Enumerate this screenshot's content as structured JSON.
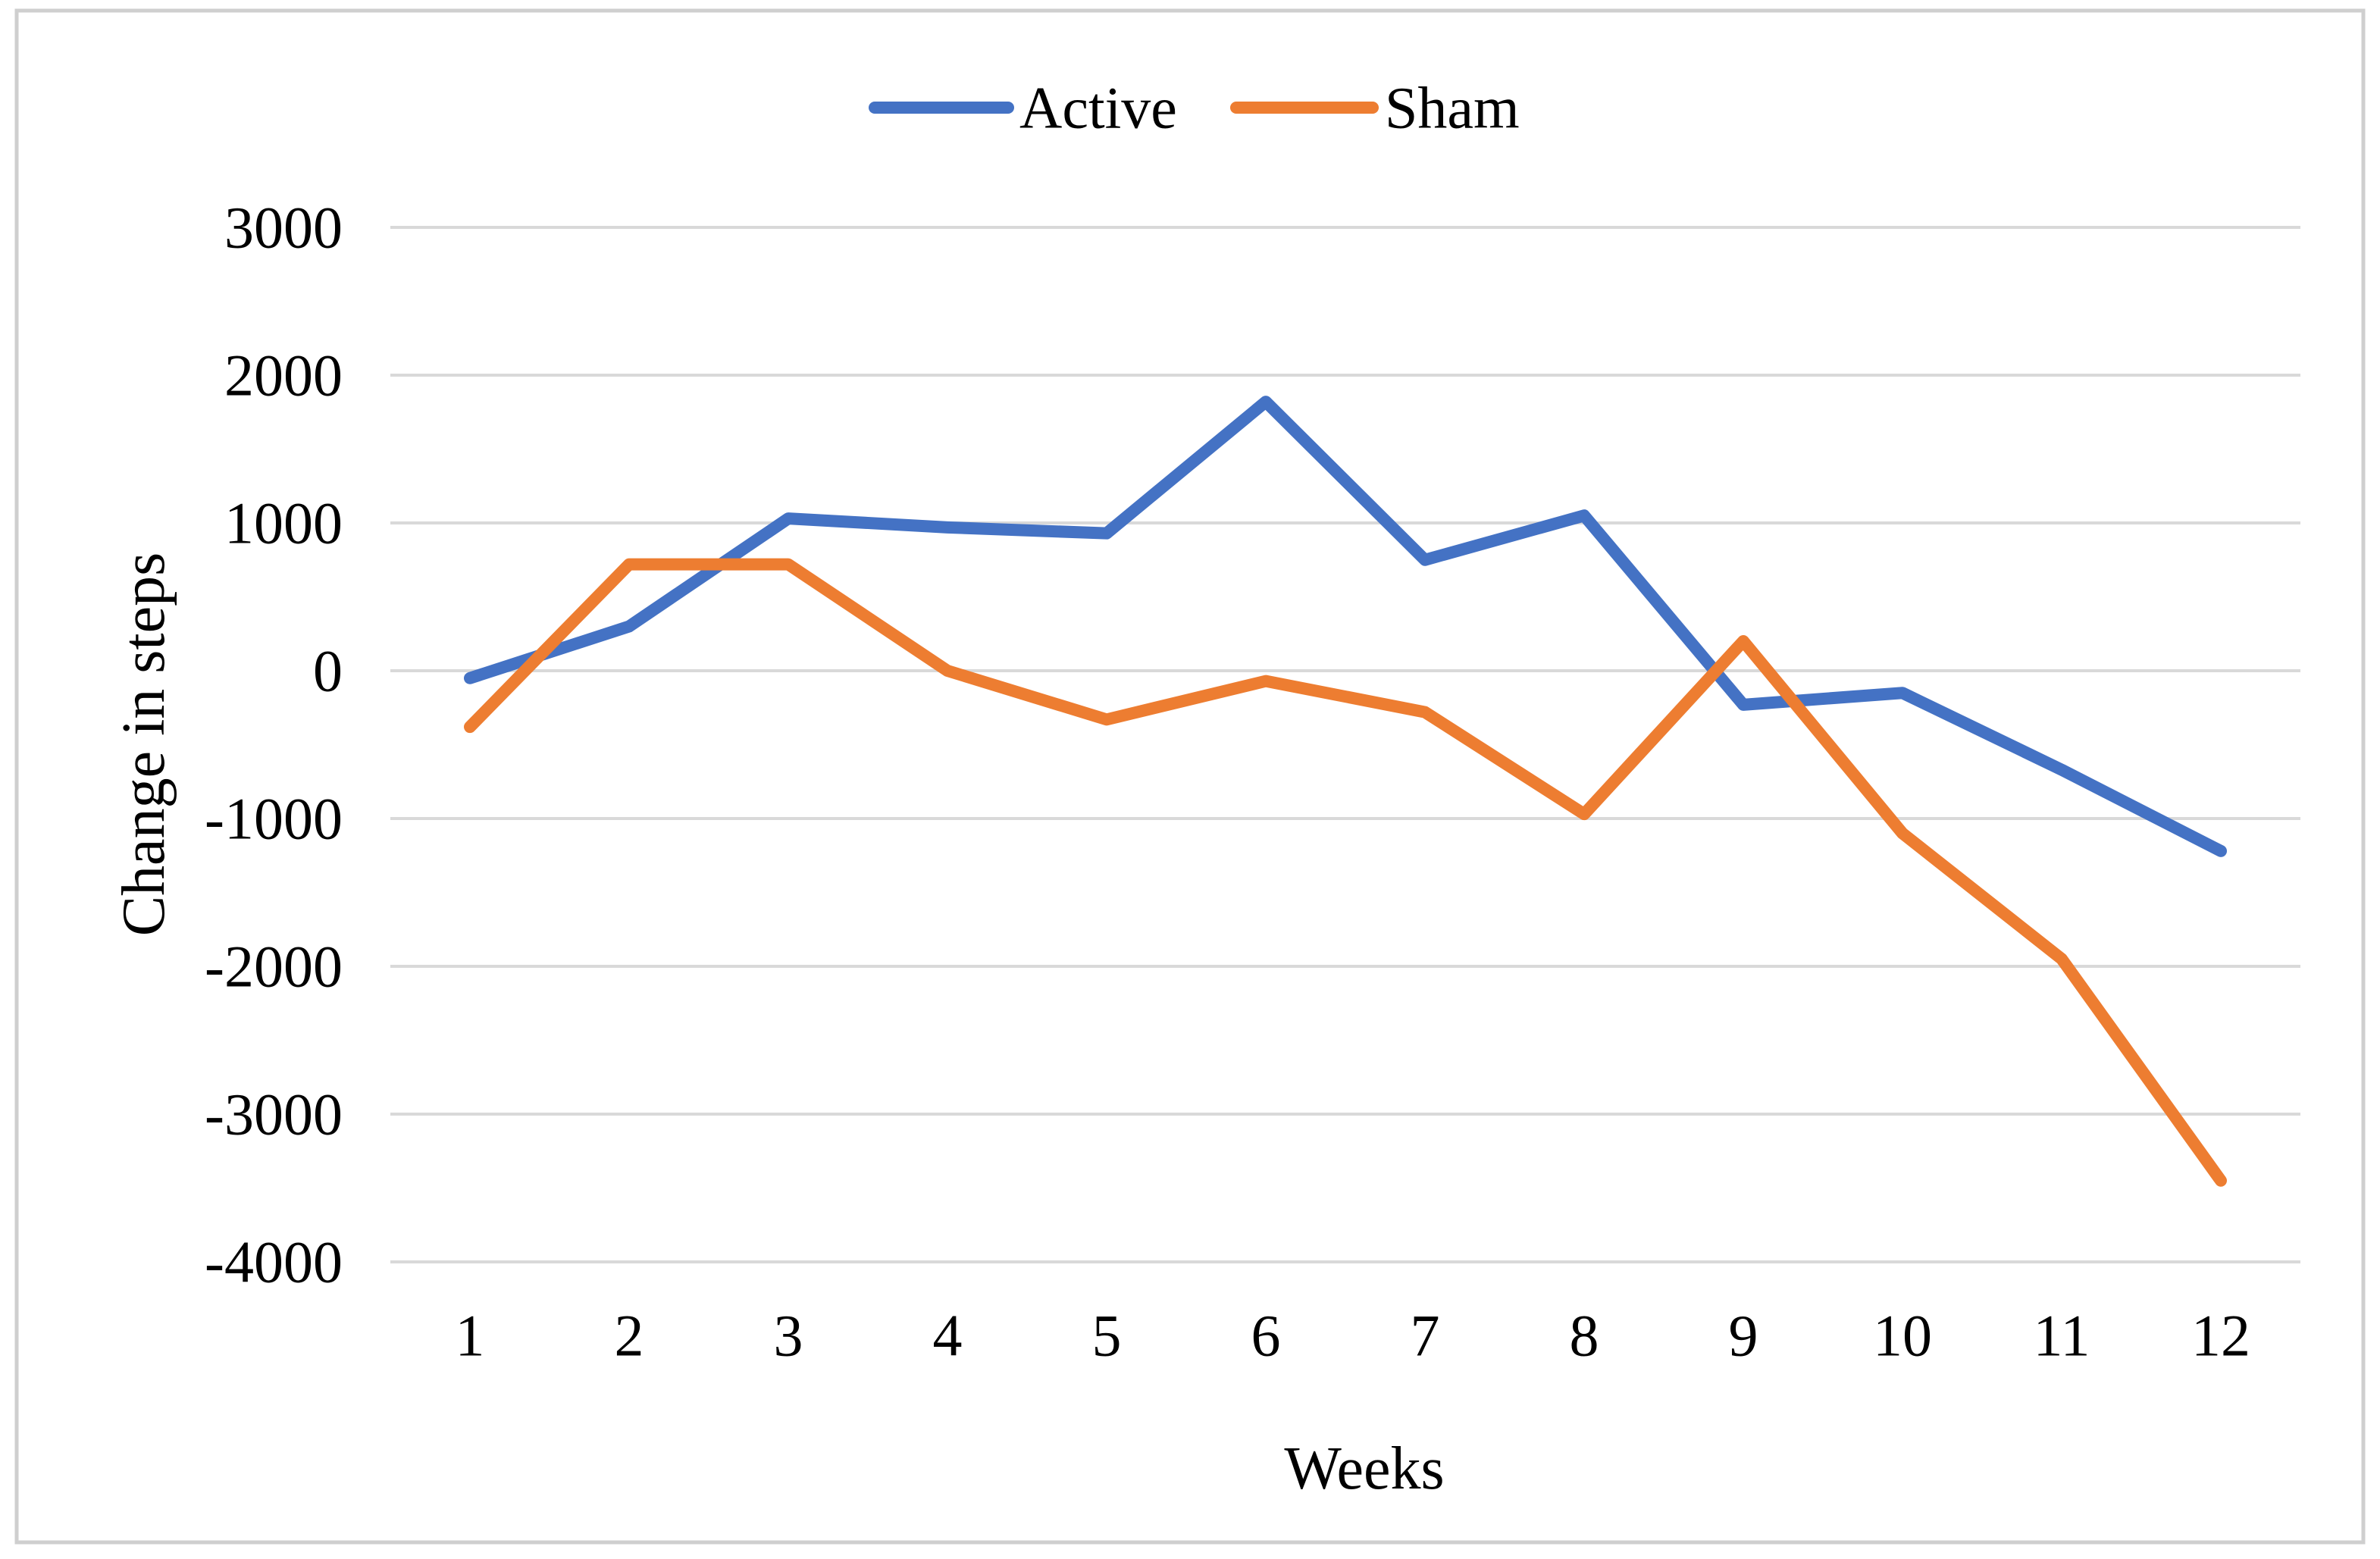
{
  "figure": {
    "background_color": "#ffffff",
    "border_color": "#cfcfcf"
  },
  "legend": {
    "items": [
      {
        "label": "Active",
        "color": "#4472C4"
      },
      {
        "label": "Sham",
        "color": "#ED7D31"
      }
    ]
  },
  "axes": {
    "y_title": "Change in steps",
    "x_title": "Weeks",
    "y_tick_labels": [
      "3000",
      "2000",
      "1000",
      "0",
      "-1000",
      "-2000",
      "-3000",
      "-4000"
    ],
    "y_tick_values": [
      3000,
      2000,
      1000,
      0,
      -1000,
      -2000,
      -3000,
      -4000
    ],
    "x_tick_labels": [
      "1",
      "2",
      "3",
      "4",
      "5",
      "6",
      "7",
      "8",
      "9",
      "10",
      "11",
      "12"
    ]
  },
  "chart_data": {
    "type": "line",
    "title": "",
    "xlabel": "Weeks",
    "ylabel": "Change in steps",
    "x": [
      1,
      2,
      3,
      4,
      5,
      6,
      7,
      8,
      9,
      10,
      11,
      12
    ],
    "series": [
      {
        "name": "Active",
        "color": "#4472C4",
        "values": [
          -50,
          300,
          1030,
          970,
          930,
          1820,
          750,
          1050,
          -230,
          -150,
          -670,
          -1220
        ]
      },
      {
        "name": "Sham",
        "color": "#ED7D31",
        "values": [
          -380,
          720,
          720,
          0,
          -330,
          -70,
          -280,
          -970,
          200,
          -1100,
          -1950,
          -3450
        ]
      }
    ],
    "ylim": [
      -4000,
      3000
    ],
    "y_tick_step": 1000,
    "grid": "horizontal",
    "gridline_color": "#d9d9d9",
    "legend_position": "top-center",
    "line_width": 16
  }
}
